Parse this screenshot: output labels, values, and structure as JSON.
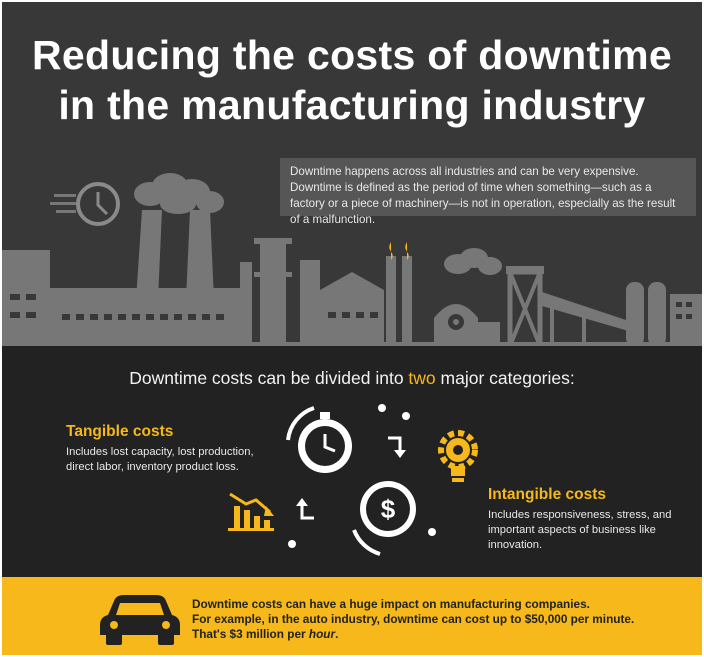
{
  "title": {
    "line1": "Reducing the costs of downtime",
    "line2": "in the manufacturing industry"
  },
  "intro": "Downtime happens across all industries and can be very expensive. Downtime is defined as the period of time when something—such as a factory or a piece of machinery—is not in operation, especially as the result of a malfunction.",
  "categories": {
    "before": "Downtime costs can be divided into ",
    "highlight": "two",
    "after": " major categories:"
  },
  "tangible": {
    "title": "Tangible costs",
    "description": "Includes lost capacity, lost production, direct labor, inventory product loss."
  },
  "intangible": {
    "title": "Intangible costs",
    "description": "Includes responsiveness, stress, and important aspects of business like innovation."
  },
  "impact": {
    "line1": "Downtime costs can have a huge impact on manufacturing companies.",
    "line2": "For example, in the auto industry, downtime can cost up to $50,000 per minute.",
    "line3_before": "That's $3 million per ",
    "line3_em": "hour",
    "line3_after": "."
  },
  "icons": {
    "dollar_symbol": "$",
    "names": [
      "clock-icon",
      "factory-skyline-icon",
      "stopwatch-icon",
      "dollar-coin-icon",
      "lightbulb-gear-icon",
      "declining-chart-icon",
      "car-icon"
    ]
  },
  "colors": {
    "accent": "#f6b81a",
    "header_bg": "#383838",
    "mid_bg": "#222222",
    "silhouette": "#777777"
  }
}
